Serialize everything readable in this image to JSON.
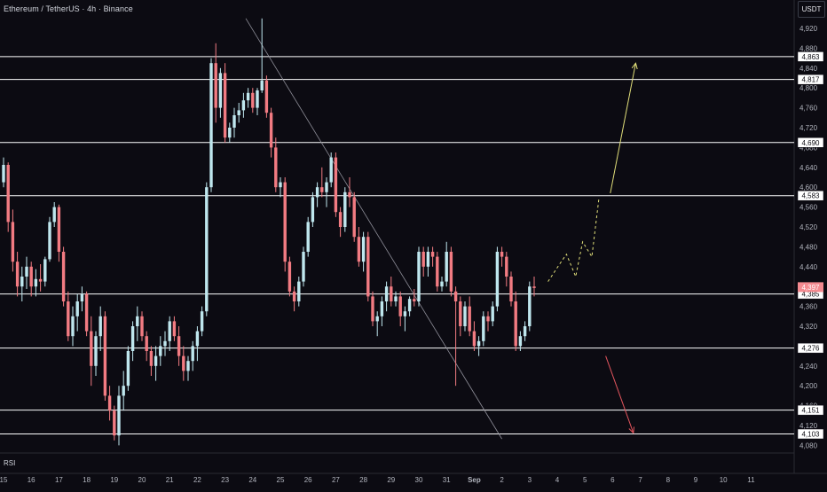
{
  "header": {
    "title": "Ethereum / TetherUS · 4h · Binance"
  },
  "currency_button": {
    "label": "USDT"
  },
  "indicator": {
    "label": "RSI"
  },
  "colors": {
    "background": "#0c0b12",
    "bull": "#bfe7ee",
    "bear": "#f27b82",
    "level_line": "#ffffff",
    "trendline": "#8f8f99",
    "up_arrow": "#e2e07a",
    "down_arrow": "#e2555d",
    "price_badge": "#f48a90"
  },
  "chart_data": {
    "type": "candlestick",
    "title": "Ethereum / TetherUS · 4h · Binance",
    "ylim": [
      4070,
      4945
    ],
    "y_ticks": [
      4080,
      4120,
      4160,
      4200,
      4240,
      4280,
      4320,
      4360,
      4400,
      4440,
      4480,
      4520,
      4560,
      4600,
      4640,
      4680,
      4720,
      4760,
      4800,
      4840,
      4880,
      4920
    ],
    "x_ticks": [
      "15",
      "16",
      "17",
      "18",
      "19",
      "20",
      "21",
      "22",
      "23",
      "24",
      "25",
      "26",
      "27",
      "28",
      "29",
      "30",
      "31",
      "Sep",
      "2",
      "3",
      "4",
      "5",
      "6",
      "7",
      "8",
      "9",
      "10",
      "11"
    ],
    "x_tick_positions": [
      0,
      6,
      12,
      18,
      24,
      30,
      36,
      42,
      48,
      54,
      60,
      66,
      72,
      78,
      84,
      90,
      96,
      102,
      108,
      114,
      120,
      126,
      132,
      138,
      144,
      150,
      156,
      162
    ],
    "levels": [
      4863,
      4817,
      4690,
      4583,
      4385,
      4276,
      4151,
      4103
    ],
    "current_price": 4397,
    "grid": false,
    "candles": [
      [
        4610,
        4660,
        4600,
        4645
      ],
      [
        4645,
        4650,
        4510,
        4530
      ],
      [
        4530,
        4555,
        4430,
        4450
      ],
      [
        4450,
        4470,
        4380,
        4400
      ],
      [
        4400,
        4440,
        4370,
        4420
      ],
      [
        4420,
        4460,
        4395,
        4440
      ],
      [
        4440,
        4450,
        4380,
        4400
      ],
      [
        4400,
        4435,
        4380,
        4415
      ],
      [
        4415,
        4445,
        4390,
        4410
      ],
      [
        4410,
        4460,
        4400,
        4455
      ],
      [
        4455,
        4540,
        4450,
        4530
      ],
      [
        4530,
        4570,
        4520,
        4560
      ],
      [
        4560,
        4565,
        4450,
        4470
      ],
      [
        4470,
        4480,
        4360,
        4370
      ],
      [
        4370,
        4390,
        4290,
        4300
      ],
      [
        4300,
        4360,
        4280,
        4340
      ],
      [
        4340,
        4385,
        4310,
        4370
      ],
      [
        4370,
        4400,
        4350,
        4385
      ],
      [
        4385,
        4390,
        4300,
        4310
      ],
      [
        4310,
        4340,
        4200,
        4240
      ],
      [
        4240,
        4310,
        4220,
        4300
      ],
      [
        4300,
        4360,
        4270,
        4340
      ],
      [
        4340,
        4350,
        4170,
        4180
      ],
      [
        4180,
        4200,
        4130,
        4150
      ],
      [
        4150,
        4160,
        4090,
        4100
      ],
      [
        4100,
        4200,
        4080,
        4180
      ],
      [
        4180,
        4230,
        4150,
        4200
      ],
      [
        4200,
        4280,
        4190,
        4270
      ],
      [
        4270,
        4330,
        4250,
        4320
      ],
      [
        4320,
        4360,
        4290,
        4340
      ],
      [
        4340,
        4350,
        4290,
        4300
      ],
      [
        4300,
        4310,
        4250,
        4270
      ],
      [
        4270,
        4280,
        4220,
        4240
      ],
      [
        4240,
        4280,
        4210,
        4260
      ],
      [
        4260,
        4300,
        4240,
        4280
      ],
      [
        4280,
        4310,
        4260,
        4290
      ],
      [
        4290,
        4340,
        4270,
        4330
      ],
      [
        4330,
        4340,
        4290,
        4300
      ],
      [
        4300,
        4320,
        4240,
        4260
      ],
      [
        4260,
        4280,
        4210,
        4230
      ],
      [
        4230,
        4260,
        4210,
        4250
      ],
      [
        4250,
        4290,
        4230,
        4280
      ],
      [
        4280,
        4320,
        4250,
        4310
      ],
      [
        4310,
        4360,
        4300,
        4350
      ],
      [
        4350,
        4610,
        4340,
        4600
      ],
      [
        4600,
        4860,
        4590,
        4850
      ],
      [
        4850,
        4890,
        4730,
        4760
      ],
      [
        4760,
        4840,
        4740,
        4830
      ],
      [
        4830,
        4850,
        4690,
        4700
      ],
      [
        4700,
        4730,
        4690,
        4720
      ],
      [
        4720,
        4760,
        4700,
        4745
      ],
      [
        4745,
        4770,
        4730,
        4755
      ],
      [
        4755,
        4790,
        4740,
        4775
      ],
      [
        4775,
        4800,
        4760,
        4790
      ],
      [
        4790,
        4800,
        4750,
        4760
      ],
      [
        4760,
        4800,
        4745,
        4795
      ],
      [
        4795,
        4940,
        4790,
        4815
      ],
      [
        4815,
        4825,
        4740,
        4750
      ],
      [
        4750,
        4760,
        4660,
        4680
      ],
      [
        4680,
        4700,
        4590,
        4600
      ],
      [
        4600,
        4620,
        4580,
        4610
      ],
      [
        4610,
        4620,
        4430,
        4450
      ],
      [
        4450,
        4460,
        4380,
        4390
      ],
      [
        4390,
        4400,
        4350,
        4370
      ],
      [
        4370,
        4420,
        4360,
        4410
      ],
      [
        4410,
        4480,
        4400,
        4470
      ],
      [
        4470,
        4540,
        4460,
        4530
      ],
      [
        4530,
        4590,
        4520,
        4580
      ],
      [
        4580,
        4610,
        4560,
        4600
      ],
      [
        4600,
        4640,
        4580,
        4590
      ],
      [
        4590,
        4620,
        4560,
        4610
      ],
      [
        4610,
        4670,
        4600,
        4660
      ],
      [
        4660,
        4670,
        4540,
        4550
      ],
      [
        4550,
        4560,
        4500,
        4520
      ],
      [
        4520,
        4600,
        4510,
        4590
      ],
      [
        4590,
        4620,
        4560,
        4580
      ],
      [
        4580,
        4590,
        4490,
        4500
      ],
      [
        4500,
        4520,
        4440,
        4450
      ],
      [
        4450,
        4510,
        4430,
        4500
      ],
      [
        4500,
        4510,
        4370,
        4380
      ],
      [
        4380,
        4390,
        4320,
        4330
      ],
      [
        4330,
        4350,
        4300,
        4340
      ],
      [
        4340,
        4380,
        4320,
        4370
      ],
      [
        4370,
        4410,
        4350,
        4400
      ],
      [
        4400,
        4420,
        4360,
        4370
      ],
      [
        4370,
        4390,
        4360,
        4380
      ],
      [
        4380,
        4390,
        4320,
        4340
      ],
      [
        4340,
        4360,
        4310,
        4350
      ],
      [
        4350,
        4380,
        4340,
        4375
      ],
      [
        4375,
        4395,
        4360,
        4370
      ],
      [
        4370,
        4480,
        4360,
        4470
      ],
      [
        4470,
        4480,
        4420,
        4440
      ],
      [
        4440,
        4480,
        4420,
        4470
      ],
      [
        4470,
        4480,
        4440,
        4460
      ],
      [
        4460,
        4470,
        4390,
        4400
      ],
      [
        4400,
        4420,
        4390,
        4410
      ],
      [
        4410,
        4490,
        4400,
        4470
      ],
      [
        4470,
        4480,
        4380,
        4390
      ],
      [
        4390,
        4400,
        4200,
        4370
      ],
      [
        4370,
        4380,
        4300,
        4320
      ],
      [
        4320,
        4370,
        4310,
        4360
      ],
      [
        4360,
        4380,
        4300,
        4310
      ],
      [
        4310,
        4330,
        4270,
        4280
      ],
      [
        4280,
        4300,
        4260,
        4290
      ],
      [
        4290,
        4350,
        4280,
        4340
      ],
      [
        4340,
        4350,
        4310,
        4330
      ],
      [
        4330,
        4370,
        4320,
        4360
      ],
      [
        4360,
        4480,
        4350,
        4470
      ],
      [
        4470,
        4480,
        4440,
        4460
      ],
      [
        4460,
        4470,
        4400,
        4420
      ],
      [
        4420,
        4430,
        4360,
        4370
      ],
      [
        4370,
        4390,
        4270,
        4280
      ],
      [
        4280,
        4310,
        4270,
        4300
      ],
      [
        4300,
        4330,
        4290,
        4320
      ],
      [
        4320,
        4410,
        4310,
        4400
      ],
      [
        4400,
        4420,
        4380,
        4397
      ]
    ],
    "projection_path": [
      [
        118,
        4410
      ],
      [
        120.5,
        4445
      ],
      [
        122,
        4465
      ],
      [
        124,
        4420
      ],
      [
        125.5,
        4490
      ],
      [
        127.5,
        4460
      ],
      [
        129,
        4575
      ]
    ],
    "trendline": [
      [
        52.5,
        4940
      ],
      [
        108,
        4093
      ]
    ],
    "up_arrow": [
      [
        131.5,
        4588
      ],
      [
        137,
        4850
      ]
    ],
    "down_arrow": [
      [
        130.5,
        4260
      ],
      [
        136.5,
        4105
      ]
    ]
  }
}
